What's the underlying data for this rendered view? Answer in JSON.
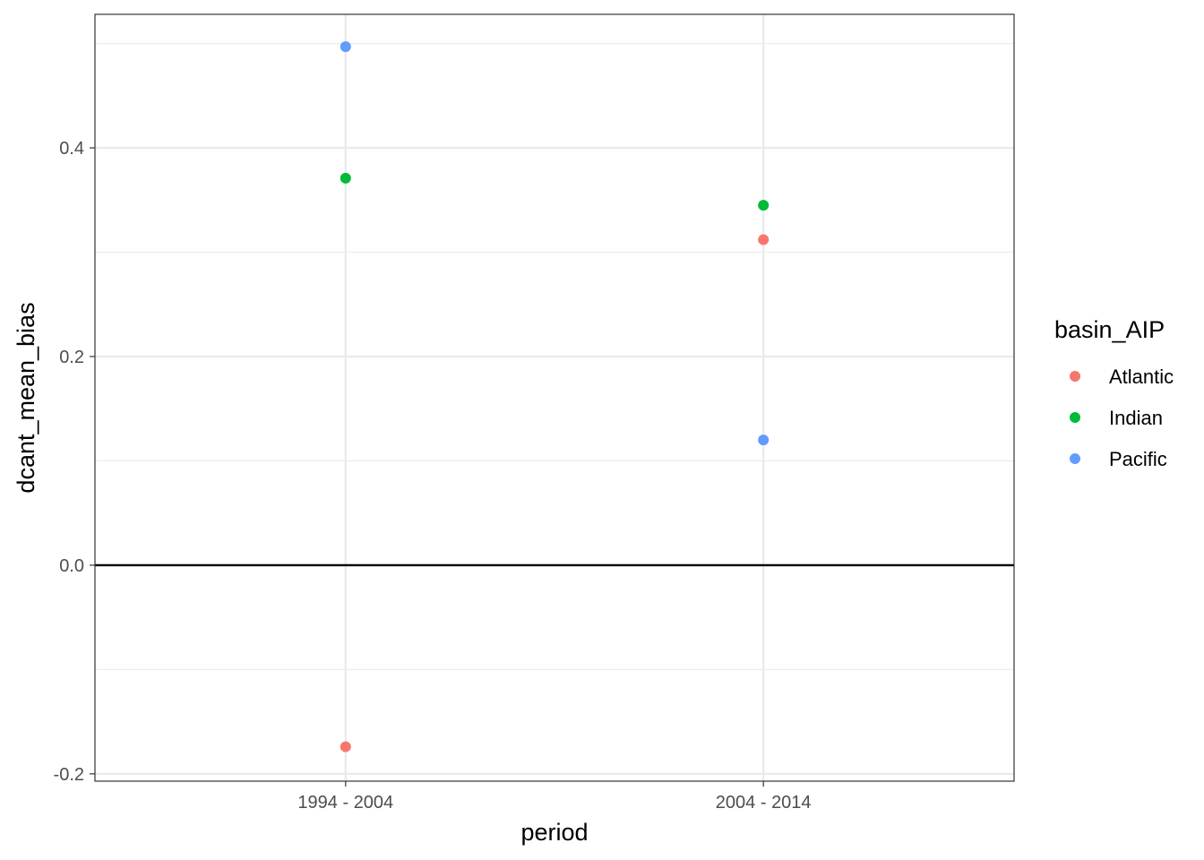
{
  "chart_data": {
    "type": "scatter",
    "xlabel": "period",
    "ylabel": "dcant_mean_bias",
    "categories": [
      "1994 - 2004",
      "2004 - 2014"
    ],
    "ylim": [
      -0.207,
      0.528
    ],
    "y_ticks": [
      -0.2,
      0.0,
      0.2,
      0.4
    ],
    "y_tick_labels": [
      "-0.2",
      "0.0",
      "0.2",
      "0.4"
    ],
    "reference_line_y": 0.0,
    "grid": true,
    "legend": {
      "title": "basin_AIP",
      "placement": "right"
    },
    "series": [
      {
        "name": "Atlantic",
        "color": "#F8766D",
        "values": [
          -0.174,
          0.312
        ]
      },
      {
        "name": "Indian",
        "color": "#00BA38",
        "values": [
          0.371,
          0.345
        ]
      },
      {
        "name": "Pacific",
        "color": "#619CFF",
        "values": [
          0.497,
          0.12
        ]
      }
    ]
  }
}
